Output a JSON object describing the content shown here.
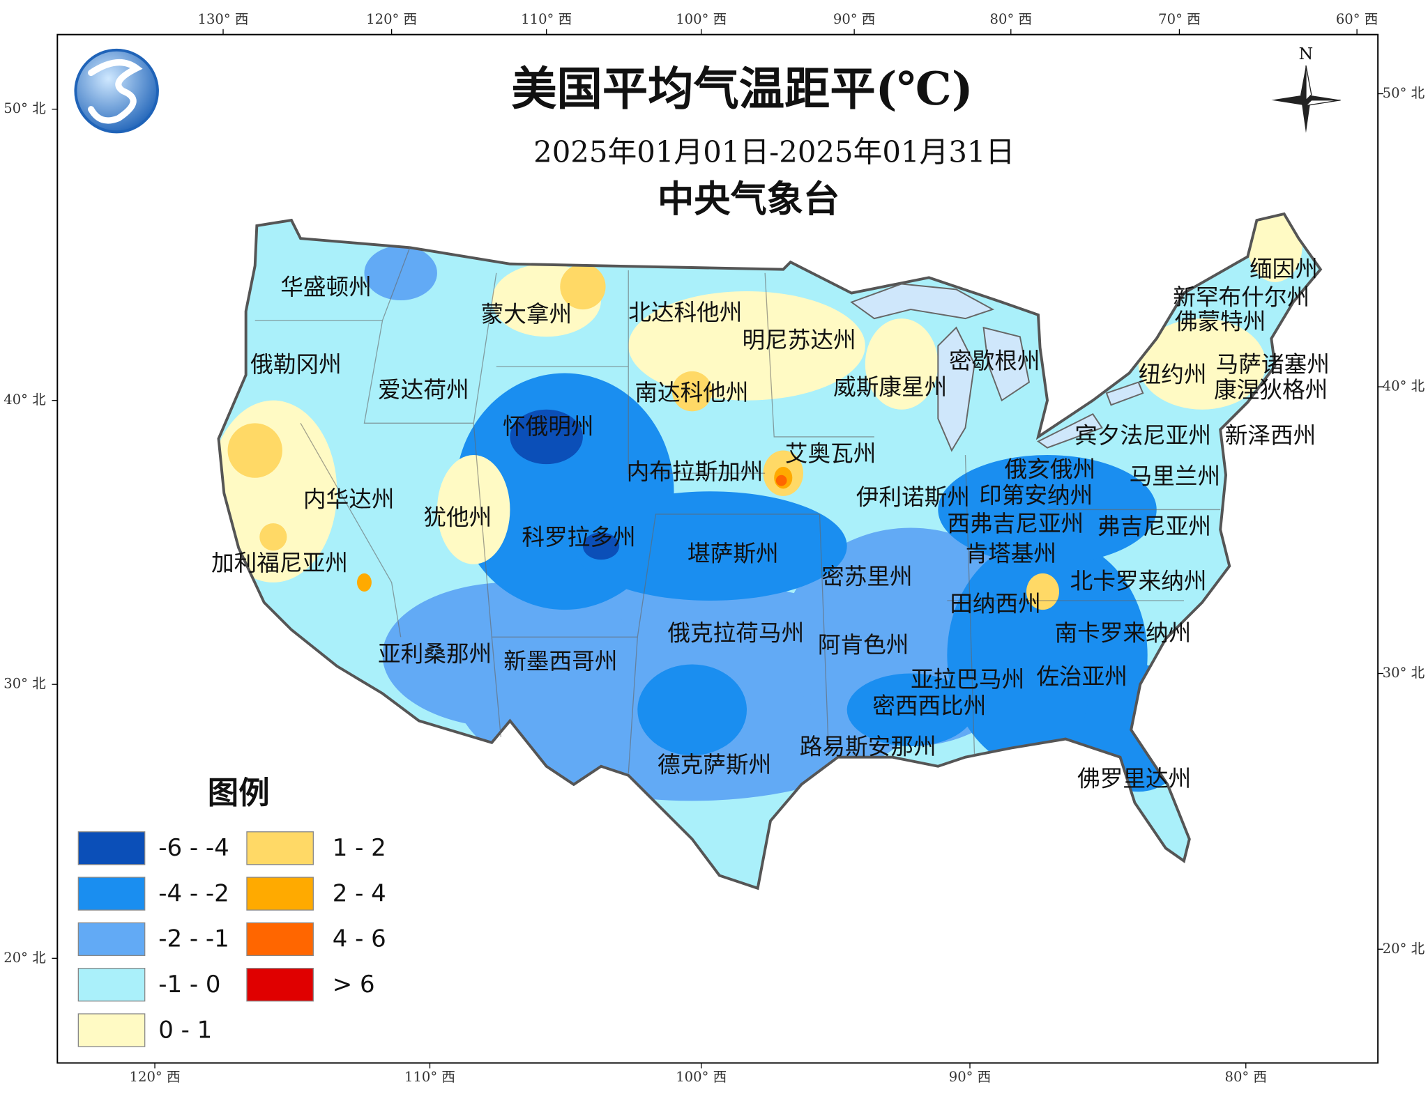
{
  "map": {
    "title": "美国平均气温距平(℃)",
    "subtitle": "2025年01月01日-2025年01月31日",
    "agency": "中央气象台",
    "compass": "N",
    "top_axis": [
      "130° 西",
      "120° 西",
      "110° 西",
      "100° 西",
      "90° 西",
      "80° 西",
      "70° 西",
      "60° 西"
    ],
    "bottom_axis": [
      "120° 西",
      "110° 西",
      "100° 西",
      "90° 西",
      "80° 西"
    ],
    "left_axis": [
      "50° 北",
      "40° 北",
      "30° 北",
      "20° 北"
    ],
    "right_axis": [
      "50° 北",
      "40° 北",
      "30° 北",
      "20° 北"
    ],
    "states": [
      "华盛顿州",
      "蒙大拿州",
      "北达科他州",
      "明尼苏达州",
      "俄勒冈州",
      "爱达荷州",
      "南达科他州",
      "威斯康星州",
      "密歇根州",
      "缅因州",
      "新罕布什尔州",
      "佛蒙特州",
      "马萨诸塞州",
      "纽约州",
      "康涅狄格州",
      "怀俄明州",
      "艾奥瓦州",
      "宾夕法尼亚州",
      "新泽西州",
      "内布拉斯加州",
      "俄亥俄州",
      "马里兰州",
      "内华达州",
      "伊利诺斯州",
      "印第安纳州",
      "犹他州",
      "西弗吉尼亚州",
      "弗吉尼亚州",
      "科罗拉多州",
      "堪萨斯州",
      "肯塔基州",
      "加利福尼亚州",
      "密苏里州",
      "北卡罗来纳州",
      "田纳西州",
      "俄克拉荷马州",
      "南卡罗来纳州",
      "阿肯色州",
      "亚利桑那州",
      "新墨西哥州",
      "亚拉巴马州",
      "佐治亚州",
      "密西西比州",
      "路易斯安那州",
      "德克萨斯州",
      "佛罗里达州"
    ],
    "legend": {
      "title": "图例",
      "items": [
        {
          "label": "-6 - -4",
          "color": "#0b4fb8"
        },
        {
          "label": "-4 - -2",
          "color": "#1a8ef0"
        },
        {
          "label": "-2 - -1",
          "color": "#62aaf5"
        },
        {
          "label": "-1 - 0",
          "color": "#aaf0fa"
        },
        {
          "label": "0 - 1",
          "color": "#fffac4"
        },
        {
          "label": "1 - 2",
          "color": "#ffd966"
        },
        {
          "label": "2 - 4",
          "color": "#ffaa00"
        },
        {
          "label": "4 - 6",
          "color": "#ff6600"
        },
        {
          "label": "> 6",
          "color": "#e00000"
        }
      ]
    }
  }
}
